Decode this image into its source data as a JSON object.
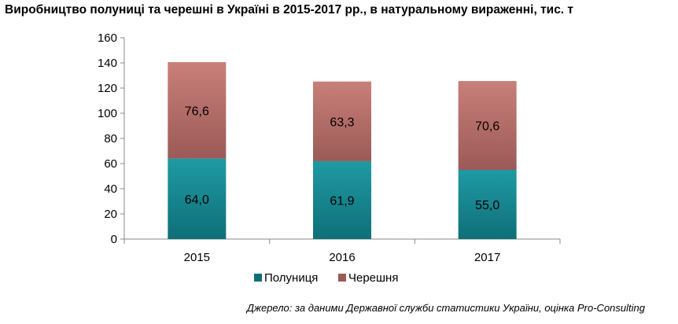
{
  "chart_data": {
    "type": "bar",
    "stacked": true,
    "title": "Виробництво полуниці та черешні в Україні в 2015-2017 рр., в натуральному вираженні, тис. т",
    "categories": [
      "2015",
      "2016",
      "2017"
    ],
    "series": [
      {
        "name": "Полуниця",
        "values": [
          64.0,
          61.9,
          55.0
        ],
        "labels": [
          "64,0",
          "61,9",
          "55,0"
        ],
        "color": "#1f9aa3",
        "color_dark": "#0f6f78"
      },
      {
        "name": "Черешня",
        "values": [
          76.6,
          63.3,
          70.6
        ],
        "labels": [
          "76,6",
          "63,3",
          "70,6"
        ],
        "color": "#c97f7a",
        "color_dark": "#9b5a56"
      }
    ],
    "ylim": [
      0,
      160
    ],
    "yticks": [
      0,
      20,
      40,
      60,
      80,
      100,
      120,
      140,
      160
    ],
    "xlabel": "",
    "ylabel": "",
    "grid": false,
    "legend_position": "bottom"
  },
  "source": "Джерело: за даними Державної служби статистики України, оцінка Pro-Consulting"
}
